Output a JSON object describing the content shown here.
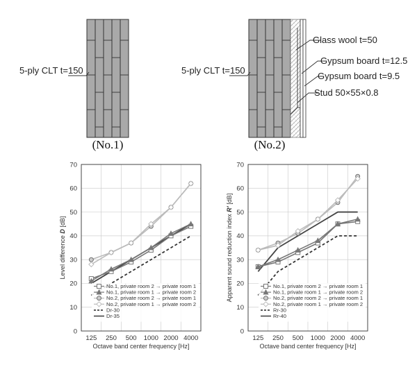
{
  "diagrams": [
    {
      "caption": "(No.1)",
      "labels": [
        "5-ply CLT t=150"
      ]
    },
    {
      "caption": "(No.2)",
      "labels": [
        "5-ply CLT t=150",
        "Glass wool t=50",
        "Gypsum board t=12.5",
        "Gypsum board t=9.5",
        "Stud 50×55×0.8"
      ]
    }
  ],
  "chart_data": [
    {
      "type": "line",
      "xlabel": "Octave band center frequency [Hz]",
      "ylabel_parts": [
        "Level difference ",
        "D",
        " [dB]"
      ],
      "x": [
        "125",
        "250",
        "500",
        "1000",
        "2000",
        "4000"
      ],
      "ylim": [
        0,
        70
      ],
      "yticks": [
        0,
        10,
        20,
        30,
        40,
        50,
        60,
        70
      ],
      "grid": true,
      "legend_position": "bottom-right",
      "series": [
        {
          "name": "No.1, private room 2 → private room 1",
          "marker": "square",
          "color": "#777777",
          "dash": "solid",
          "values": [
            22,
            25,
            29,
            34,
            40,
            44
          ]
        },
        {
          "name": "No.1, private room 1 → private room 2",
          "marker": "triangle",
          "color": "#777777",
          "dash": "solid",
          "values": [
            21,
            26,
            30,
            35,
            41,
            45
          ]
        },
        {
          "name": "No.2, private room 2 → private room 1",
          "marker": "circle",
          "color": "#bbbbbb",
          "dash": "solid",
          "values": [
            30,
            33,
            37,
            44,
            52,
            62
          ]
        },
        {
          "name": "No.2, private room 1 → private room 2",
          "marker": "diamond",
          "color": "#bbbbbb",
          "dash": "solid",
          "values": [
            28,
            33,
            37,
            45,
            52,
            62
          ]
        },
        {
          "name": "Dr-30",
          "marker": "none",
          "color": "#333333",
          "dash": "dashed",
          "values": [
            15,
            20,
            25,
            30,
            35,
            40
          ]
        },
        {
          "name": "Dr-35",
          "marker": "none",
          "color": "#444444",
          "dash": "solid",
          "values": [
            20,
            25,
            30,
            35,
            40,
            45
          ]
        }
      ]
    },
    {
      "type": "line",
      "xlabel": "Octave band center frequency [Hz]",
      "ylabel_parts": [
        "Apparent sound reduction index ",
        "R'",
        " [dB]"
      ],
      "x": [
        "125",
        "250",
        "500",
        "1000",
        "2000",
        "4000"
      ],
      "ylim": [
        0,
        70
      ],
      "yticks": [
        0,
        10,
        20,
        30,
        40,
        50,
        60,
        70
      ],
      "grid": true,
      "legend_position": "bottom-right",
      "series": [
        {
          "name": "No.1, private room 2 → private room 1",
          "marker": "square",
          "color": "#777777",
          "dash": "solid",
          "values": [
            27,
            29,
            33,
            37,
            45,
            46
          ]
        },
        {
          "name": "No.1, private room 1 → private room 2",
          "marker": "triangle",
          "color": "#777777",
          "dash": "solid",
          "values": [
            27,
            30,
            34,
            38,
            45,
            47
          ]
        },
        {
          "name": "No.2, private room 2 → private room 1",
          "marker": "circle",
          "color": "#bbbbbb",
          "dash": "solid",
          "values": [
            34,
            37,
            41,
            47,
            54,
            65
          ]
        },
        {
          "name": "No.2, private room 1 → private room 2",
          "marker": "diamond",
          "color": "#bbbbbb",
          "dash": "solid",
          "values": [
            34,
            36,
            42,
            47,
            55,
            64
          ]
        },
        {
          "name": "Rr-30",
          "marker": "none",
          "color": "#333333",
          "dash": "dashed",
          "values": [
            15,
            25,
            30,
            35,
            40,
            40
          ]
        },
        {
          "name": "Rr-40",
          "marker": "none",
          "color": "#444444",
          "dash": "solid",
          "values": [
            25,
            35,
            40,
            45,
            50,
            50
          ]
        }
      ]
    }
  ]
}
